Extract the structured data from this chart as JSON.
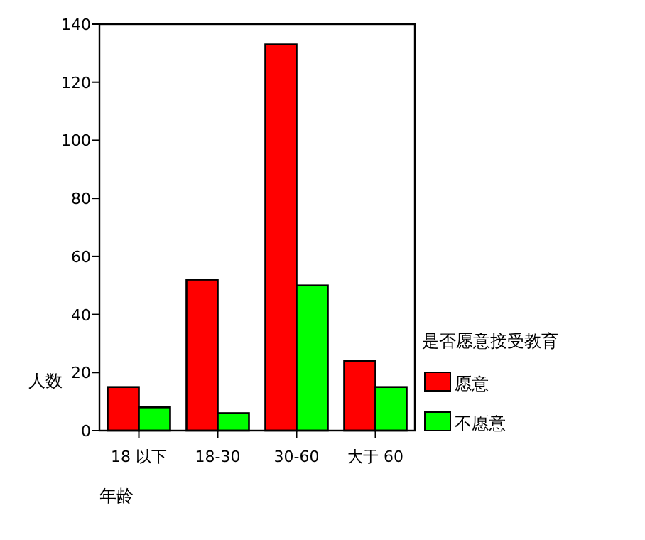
{
  "chart_data": {
    "type": "bar",
    "xlabel": "年龄",
    "ylabel": "人数",
    "legend_title": "是否愿意接受教育",
    "legend": "right",
    "categories": [
      "18 以下",
      "18-30",
      "30-60",
      "大于 60"
    ],
    "series": [
      {
        "name": "愿意",
        "color": "#ff0000",
        "values": [
          15,
          52,
          133,
          24
        ]
      },
      {
        "name": "不愿意",
        "color": "#00ff00",
        "values": [
          8,
          6,
          50,
          15
        ]
      }
    ],
    "ylim": [
      0,
      140
    ],
    "yticks": [
      0,
      20,
      40,
      60,
      80,
      100,
      120,
      140
    ]
  }
}
